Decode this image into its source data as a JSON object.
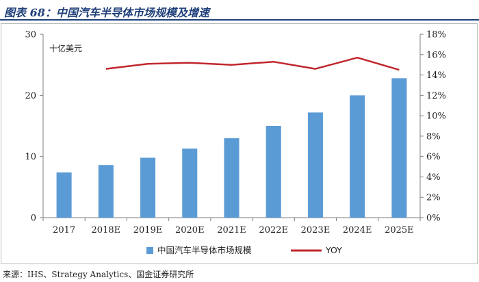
{
  "figure": {
    "title": "图表 68：中国汽车半导体市场规模及增速",
    "source": "来源：IHS、Strategy Analytics、国金证券研究所"
  },
  "chart_data": {
    "type": "bar",
    "categories": [
      "2017",
      "2018E",
      "2019E",
      "2020E",
      "2021E",
      "2022E",
      "2023E",
      "2024E",
      "2025E"
    ],
    "series": [
      {
        "name": "中国汽车半导体市场规模",
        "type": "bar",
        "axis": "left",
        "values": [
          7.4,
          8.6,
          9.8,
          11.3,
          13.0,
          15.0,
          17.2,
          20.0,
          22.8
        ],
        "color": "#5b9bd5"
      },
      {
        "name": "YOY",
        "type": "line",
        "axis": "right",
        "values": [
          null,
          14.6,
          15.1,
          15.2,
          15.0,
          15.3,
          14.6,
          15.7,
          14.5
        ],
        "color": "#c0272d"
      }
    ],
    "left_axis": {
      "label": "十亿美元",
      "ylim": [
        0,
        30
      ],
      "ticks": [
        "0",
        "10",
        "20",
        "30"
      ],
      "tick_values": [
        0,
        10,
        20,
        30
      ]
    },
    "right_axis": {
      "ylim": [
        0,
        18
      ],
      "ticks": [
        "0%",
        "2%",
        "4%",
        "6%",
        "8%",
        "10%",
        "12%",
        "14%",
        "16%",
        "18%"
      ],
      "tick_values": [
        0,
        2,
        4,
        6,
        8,
        10,
        12,
        14,
        16,
        18
      ]
    },
    "legend": {
      "position": "bottom",
      "entries": [
        "中国汽车半导体市场规模",
        "YOY"
      ]
    },
    "grid": false
  }
}
